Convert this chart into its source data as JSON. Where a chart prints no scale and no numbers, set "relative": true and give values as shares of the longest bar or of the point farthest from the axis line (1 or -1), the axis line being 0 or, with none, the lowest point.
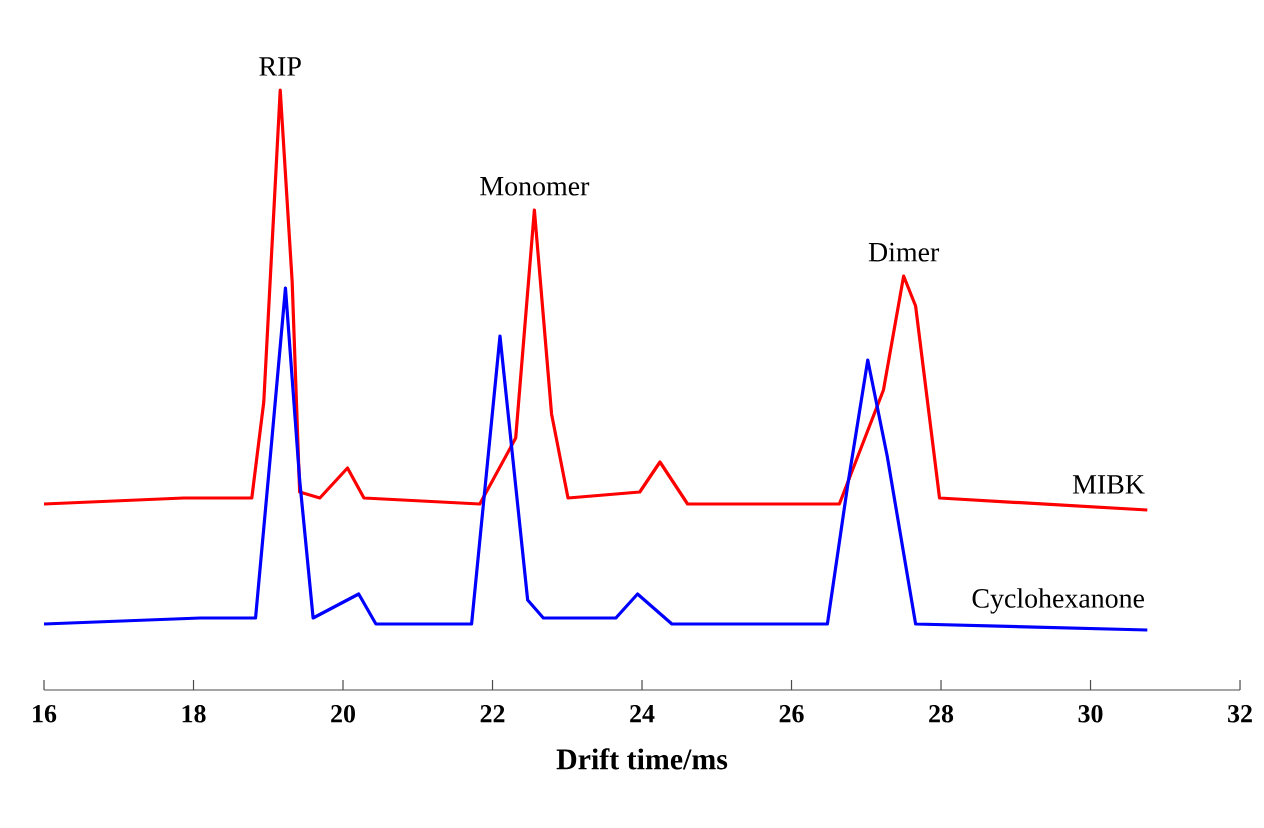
{
  "chart_data": {
    "type": "line",
    "relative": true,
    "xlabel": "Drift time/ms",
    "xlim": [
      16,
      32
    ],
    "xticks": [
      16,
      18,
      20,
      22,
      24,
      26,
      28,
      30,
      32
    ],
    "annotations": [
      {
        "text": "RIP",
        "x": 19.16,
        "y": 1.0
      },
      {
        "text": "Monomer",
        "x": 22.56,
        "y": 0.8
      },
      {
        "text": "Dimer",
        "x": 27.5,
        "y": 0.69
      }
    ],
    "series": [
      {
        "name": "MIBK",
        "color": "#ff0000",
        "x": [
          16.0,
          17.87,
          18.78,
          18.94,
          19.16,
          19.32,
          19.42,
          19.69,
          20.06,
          20.28,
          21.83,
          22.31,
          22.56,
          22.79,
          23.01,
          23.97,
          24.24,
          24.61,
          26.64,
          27.23,
          27.5,
          27.66,
          27.98,
          30.76
        ],
        "values": [
          0.31,
          0.32,
          0.32,
          0.48,
          1.0,
          0.68,
          0.33,
          0.32,
          0.37,
          0.32,
          0.31,
          0.42,
          0.8,
          0.46,
          0.32,
          0.33,
          0.38,
          0.31,
          0.31,
          0.5,
          0.69,
          0.64,
          0.32,
          0.3
        ]
      },
      {
        "name": "Cyclohexanone",
        "color": "#0000ff",
        "x": [
          16.0,
          18.09,
          18.83,
          19.05,
          19.23,
          19.42,
          19.6,
          20.21,
          20.44,
          21.72,
          22.1,
          22.47,
          22.68,
          23.65,
          23.94,
          24.4,
          26.48,
          26.75,
          27.02,
          27.28,
          27.66,
          30.76
        ],
        "values": [
          0.11,
          0.12,
          0.12,
          0.42,
          0.67,
          0.35,
          0.12,
          0.16,
          0.11,
          0.11,
          0.59,
          0.15,
          0.12,
          0.12,
          0.16,
          0.11,
          0.11,
          0.34,
          0.55,
          0.39,
          0.11,
          0.1
        ]
      }
    ]
  }
}
